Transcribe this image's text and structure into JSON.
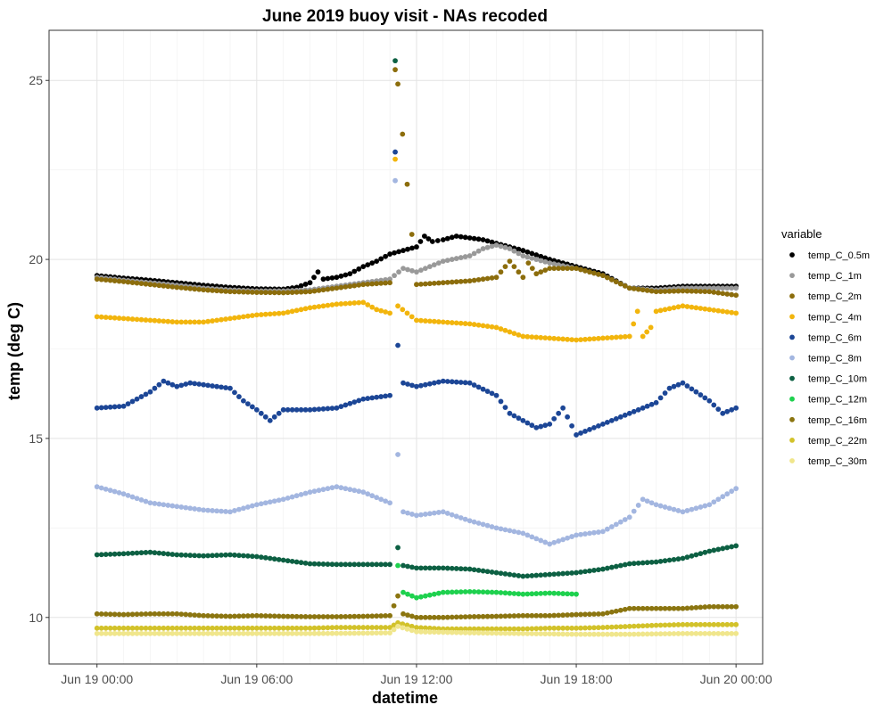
{
  "chart_data": {
    "type": "scatter",
    "title": "June 2019 buoy visit - NAs recoded",
    "xlabel": "datetime",
    "ylabel": "temp (deg C)",
    "x_unit": "hours since Jun 19 00:00",
    "xlim": [
      -1.8,
      25.0
    ],
    "ylim": [
      8.7,
      26.4
    ],
    "x_ticks": [
      {
        "value": 0,
        "label": "Jun 19 00:00"
      },
      {
        "value": 6,
        "label": "Jun 19 06:00"
      },
      {
        "value": 12,
        "label": "Jun 19 12:00"
      },
      {
        "value": 18,
        "label": "Jun 19 18:00"
      },
      {
        "value": 24,
        "label": "Jun 20 00:00"
      }
    ],
    "y_ticks": [
      {
        "value": 10,
        "label": "10"
      },
      {
        "value": 15,
        "label": "15"
      },
      {
        "value": 20,
        "label": "20"
      },
      {
        "value": 25,
        "label": "25"
      }
    ],
    "grid": true,
    "legend_title": "variable",
    "legend_position": "right",
    "sample_interval_hours": 0.1667,
    "series": [
      {
        "name": "temp_C_0.5m",
        "color": "#000000",
        "values": [
          [
            0,
            19.55
          ],
          [
            1,
            19.48
          ],
          [
            2,
            19.42
          ],
          [
            3,
            19.35
          ],
          [
            4,
            19.28
          ],
          [
            5,
            19.22
          ],
          [
            6,
            19.18
          ],
          [
            7,
            19.17
          ],
          [
            7.5,
            19.22
          ],
          [
            8,
            19.35
          ],
          [
            8.3,
            19.65
          ],
          [
            8.5,
            19.45
          ],
          [
            9,
            19.5
          ],
          [
            9.5,
            19.6
          ],
          [
            10,
            19.8
          ],
          [
            10.5,
            19.95
          ],
          [
            11,
            20.15
          ],
          [
            11.5,
            20.25
          ],
          [
            12,
            20.35
          ],
          [
            12.3,
            20.65
          ],
          [
            12.6,
            20.5
          ],
          [
            13,
            20.55
          ],
          [
            13.5,
            20.65
          ],
          [
            14,
            20.6
          ],
          [
            14.5,
            20.55
          ],
          [
            15,
            20.45
          ],
          [
            15.5,
            20.35
          ],
          [
            16,
            20.25
          ],
          [
            17,
            20.0
          ],
          [
            18,
            19.8
          ],
          [
            19,
            19.6
          ],
          [
            20,
            19.2
          ],
          [
            21,
            19.2
          ],
          [
            22,
            19.25
          ],
          [
            23,
            19.25
          ],
          [
            24,
            19.25
          ]
        ]
      },
      {
        "name": "temp_C_1m",
        "color": "#999999",
        "values": [
          [
            0,
            19.5
          ],
          [
            1,
            19.42
          ],
          [
            2,
            19.35
          ],
          [
            3,
            19.28
          ],
          [
            4,
            19.2
          ],
          [
            5,
            19.15
          ],
          [
            6,
            19.12
          ],
          [
            7,
            19.12
          ],
          [
            8,
            19.15
          ],
          [
            9,
            19.25
          ],
          [
            10,
            19.35
          ],
          [
            11,
            19.45
          ],
          [
            11.5,
            19.75
          ],
          [
            12,
            19.65
          ],
          [
            12.5,
            19.8
          ],
          [
            13,
            19.95
          ],
          [
            14,
            20.1
          ],
          [
            14.5,
            20.3
          ],
          [
            15,
            20.4
          ],
          [
            15.5,
            20.3
          ],
          [
            16,
            20.1
          ],
          [
            17,
            19.9
          ],
          [
            18,
            19.75
          ],
          [
            19,
            19.55
          ],
          [
            20,
            19.2
          ],
          [
            21,
            19.15
          ],
          [
            22,
            19.2
          ],
          [
            23,
            19.2
          ],
          [
            24,
            19.2
          ]
        ]
      },
      {
        "name": "temp_C_2m",
        "color": "#8c6d0c",
        "values": [
          [
            0,
            19.45
          ],
          [
            1,
            19.38
          ],
          [
            2,
            19.3
          ],
          [
            3,
            19.22
          ],
          [
            4,
            19.15
          ],
          [
            5,
            19.1
          ],
          [
            6,
            19.08
          ],
          [
            7,
            19.07
          ],
          [
            8,
            19.1
          ],
          [
            9,
            19.2
          ],
          [
            10,
            19.3
          ],
          [
            11,
            19.35
          ],
          [
            11.2,
            25.3
          ],
          [
            11.3,
            24.9
          ],
          [
            12,
            19.3
          ],
          [
            13,
            19.35
          ],
          [
            14,
            19.4
          ],
          [
            15,
            19.5
          ],
          [
            15.5,
            19.95
          ],
          [
            16,
            19.5
          ],
          [
            16.2,
            19.9
          ],
          [
            16.5,
            19.6
          ],
          [
            17,
            19.75
          ],
          [
            18,
            19.75
          ],
          [
            19,
            19.55
          ],
          [
            20,
            19.2
          ],
          [
            21,
            19.1
          ],
          [
            22,
            19.12
          ],
          [
            23,
            19.1
          ],
          [
            24,
            19.0
          ]
        ]
      },
      {
        "name": "temp_C_4m",
        "color": "#f2b50d",
        "values": [
          [
            0,
            18.4
          ],
          [
            1,
            18.35
          ],
          [
            2,
            18.3
          ],
          [
            3,
            18.25
          ],
          [
            4,
            18.25
          ],
          [
            5,
            18.35
          ],
          [
            6,
            18.45
          ],
          [
            7,
            18.5
          ],
          [
            8,
            18.65
          ],
          [
            9,
            18.75
          ],
          [
            10,
            18.8
          ],
          [
            10.5,
            18.6
          ],
          [
            11,
            18.5
          ],
          [
            11.2,
            22.8
          ],
          [
            11.3,
            18.7
          ],
          [
            12,
            18.3
          ],
          [
            13,
            18.25
          ],
          [
            14,
            18.2
          ],
          [
            15,
            18.1
          ],
          [
            16,
            17.85
          ],
          [
            17,
            17.8
          ],
          [
            18,
            17.75
          ],
          [
            19,
            17.8
          ],
          [
            20,
            17.85
          ],
          [
            20.3,
            18.55
          ],
          [
            20.5,
            17.85
          ],
          [
            20.8,
            18.1
          ],
          [
            21,
            18.55
          ],
          [
            22,
            18.7
          ],
          [
            23,
            18.6
          ],
          [
            24,
            18.5
          ]
        ]
      },
      {
        "name": "temp_C_6m",
        "color": "#1c4696",
        "values": [
          [
            0,
            15.85
          ],
          [
            1,
            15.9
          ],
          [
            2,
            16.3
          ],
          [
            2.5,
            16.6
          ],
          [
            3,
            16.45
          ],
          [
            3.5,
            16.55
          ],
          [
            4,
            16.5
          ],
          [
            5,
            16.4
          ],
          [
            5.5,
            16.05
          ],
          [
            6,
            15.8
          ],
          [
            6.5,
            15.5
          ],
          [
            7,
            15.8
          ],
          [
            8,
            15.8
          ],
          [
            9,
            15.85
          ],
          [
            10,
            16.1
          ],
          [
            11,
            16.2
          ],
          [
            11.2,
            23.0
          ],
          [
            11.3,
            17.6
          ],
          [
            11.5,
            16.55
          ],
          [
            12,
            16.45
          ],
          [
            13,
            16.6
          ],
          [
            14,
            16.55
          ],
          [
            15,
            16.2
          ],
          [
            15.5,
            15.7
          ],
          [
            16,
            15.5
          ],
          [
            16.5,
            15.3
          ],
          [
            17,
            15.4
          ],
          [
            17.5,
            15.85
          ],
          [
            18,
            15.1
          ],
          [
            19,
            15.4
          ],
          [
            20,
            15.7
          ],
          [
            21,
            16.0
          ],
          [
            21.5,
            16.4
          ],
          [
            22,
            16.55
          ],
          [
            23,
            16.05
          ],
          [
            23.5,
            15.7
          ],
          [
            24,
            15.85
          ]
        ]
      },
      {
        "name": "temp_C_8m",
        "color": "#a3b6e0",
        "values": [
          [
            0,
            13.65
          ],
          [
            1,
            13.45
          ],
          [
            2,
            13.2
          ],
          [
            3,
            13.1
          ],
          [
            4,
            13.0
          ],
          [
            5,
            12.95
          ],
          [
            6,
            13.15
          ],
          [
            7,
            13.3
          ],
          [
            8,
            13.5
          ],
          [
            9,
            13.65
          ],
          [
            10,
            13.5
          ],
          [
            11,
            13.2
          ],
          [
            11.2,
            22.2
          ],
          [
            11.3,
            14.55
          ],
          [
            11.5,
            12.95
          ],
          [
            12,
            12.85
          ],
          [
            13,
            12.95
          ],
          [
            14,
            12.7
          ],
          [
            15,
            12.5
          ],
          [
            16,
            12.35
          ],
          [
            17,
            12.05
          ],
          [
            18,
            12.3
          ],
          [
            19,
            12.4
          ],
          [
            20,
            12.8
          ],
          [
            20.5,
            13.3
          ],
          [
            21,
            13.15
          ],
          [
            22,
            12.95
          ],
          [
            23,
            13.15
          ],
          [
            24,
            13.6
          ]
        ]
      },
      {
        "name": "temp_C_10m",
        "color": "#0d6043",
        "values": [
          [
            0,
            11.75
          ],
          [
            1,
            11.78
          ],
          [
            2,
            11.82
          ],
          [
            3,
            11.75
          ],
          [
            4,
            11.72
          ],
          [
            5,
            11.75
          ],
          [
            6,
            11.7
          ],
          [
            7,
            11.6
          ],
          [
            8,
            11.5
          ],
          [
            9,
            11.48
          ],
          [
            10,
            11.48
          ],
          [
            11,
            11.48
          ],
          [
            11.2,
            25.55
          ],
          [
            11.3,
            11.95
          ],
          [
            11.5,
            11.45
          ],
          [
            12,
            11.38
          ],
          [
            13,
            11.38
          ],
          [
            14,
            11.35
          ],
          [
            15,
            11.25
          ],
          [
            16,
            11.15
          ],
          [
            17,
            11.2
          ],
          [
            18,
            11.25
          ],
          [
            19,
            11.35
          ],
          [
            20,
            11.5
          ],
          [
            21,
            11.55
          ],
          [
            22,
            11.65
          ],
          [
            23,
            11.85
          ],
          [
            24,
            12.0
          ]
        ]
      },
      {
        "name": "temp_C_12m",
        "color": "#1ed14e",
        "values": [
          [
            11.3,
            11.45
          ],
          [
            11.5,
            10.7
          ],
          [
            12,
            10.55
          ],
          [
            13,
            10.7
          ],
          [
            14,
            10.72
          ],
          [
            15,
            10.7
          ],
          [
            16,
            10.65
          ],
          [
            17,
            10.68
          ],
          [
            18,
            10.65
          ]
        ]
      },
      {
        "name": "temp_C_16m",
        "color": "#8b7510",
        "values": [
          [
            0,
            10.1
          ],
          [
            1,
            10.08
          ],
          [
            2,
            10.1
          ],
          [
            3,
            10.1
          ],
          [
            4,
            10.05
          ],
          [
            5,
            10.03
          ],
          [
            6,
            10.05
          ],
          [
            7,
            10.03
          ],
          [
            8,
            10.02
          ],
          [
            9,
            10.02
          ],
          [
            10,
            10.03
          ],
          [
            11,
            10.05
          ],
          [
            11.3,
            10.6
          ],
          [
            11.5,
            10.1
          ],
          [
            12,
            10.0
          ],
          [
            13,
            10.0
          ],
          [
            14,
            10.02
          ],
          [
            15,
            10.03
          ],
          [
            16,
            10.05
          ],
          [
            17,
            10.05
          ],
          [
            18,
            10.08
          ],
          [
            19,
            10.1
          ],
          [
            20,
            10.25
          ],
          [
            21,
            10.25
          ],
          [
            22,
            10.25
          ],
          [
            23,
            10.3
          ],
          [
            24,
            10.3
          ]
        ]
      },
      {
        "name": "temp_C_22m",
        "color": "#d2c22a",
        "values": [
          [
            0,
            9.7
          ],
          [
            1,
            9.7
          ],
          [
            2,
            9.7
          ],
          [
            3,
            9.7
          ],
          [
            4,
            9.7
          ],
          [
            5,
            9.7
          ],
          [
            6,
            9.7
          ],
          [
            7,
            9.7
          ],
          [
            8,
            9.7
          ],
          [
            9,
            9.72
          ],
          [
            10,
            9.72
          ],
          [
            11,
            9.72
          ],
          [
            11.3,
            9.85
          ],
          [
            12,
            9.72
          ],
          [
            13,
            9.68
          ],
          [
            14,
            9.68
          ],
          [
            15,
            9.68
          ],
          [
            16,
            9.68
          ],
          [
            17,
            9.7
          ],
          [
            18,
            9.7
          ],
          [
            19,
            9.72
          ],
          [
            20,
            9.75
          ],
          [
            21,
            9.78
          ],
          [
            22,
            9.8
          ],
          [
            23,
            9.8
          ],
          [
            24,
            9.8
          ]
        ]
      },
      {
        "name": "temp_C_30m",
        "color": "#f0e68c",
        "values": [
          [
            0,
            9.55
          ],
          [
            2,
            9.55
          ],
          [
            4,
            9.55
          ],
          [
            6,
            9.55
          ],
          [
            8,
            9.55
          ],
          [
            10,
            9.56
          ],
          [
            11,
            9.57
          ],
          [
            11.3,
            9.75
          ],
          [
            12,
            9.6
          ],
          [
            14,
            9.57
          ],
          [
            16,
            9.55
          ],
          [
            18,
            9.53
          ],
          [
            20,
            9.53
          ],
          [
            22,
            9.55
          ],
          [
            24,
            9.55
          ]
        ]
      }
    ]
  }
}
